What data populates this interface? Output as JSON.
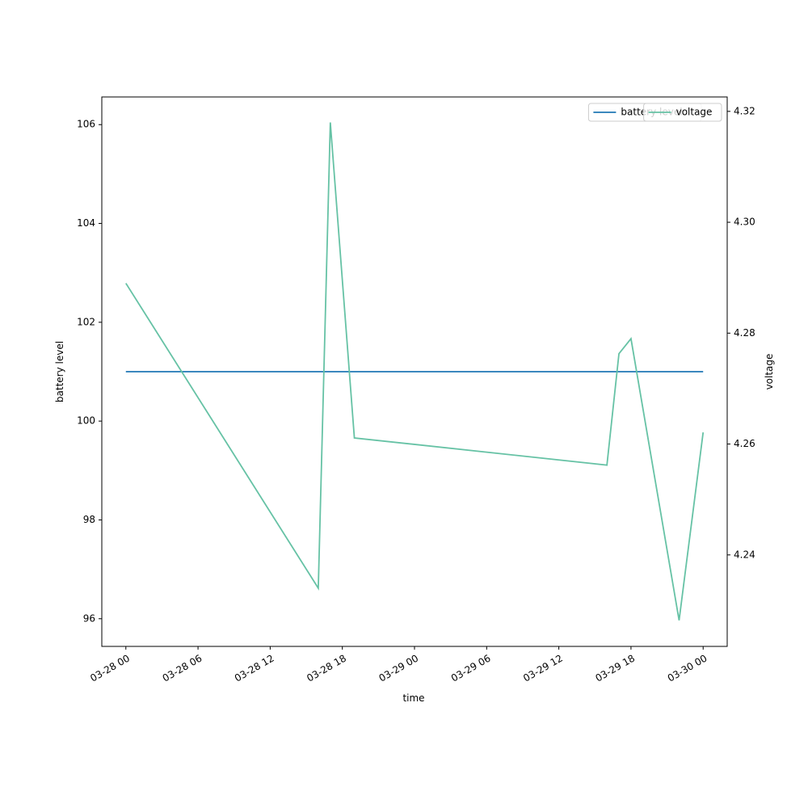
{
  "chart_data": {
    "type": "line",
    "x": [
      "03-28 00",
      "03-28 16",
      "03-28 17",
      "03-28 19",
      "03-29 16",
      "03-29 17",
      "03-29 18",
      "03-29 22",
      "03-30 00"
    ],
    "xlim": [
      "03-27 22",
      "03-30 02"
    ],
    "xticks": [
      "03-28 00",
      "03-28 06",
      "03-28 12",
      "03-28 18",
      "03-29 00",
      "03-29 06",
      "03-29 12",
      "03-29 18",
      "03-30 00"
    ],
    "xlabel": "time",
    "ylabel": "battery level",
    "y2label": "voltage",
    "ylim": [
      95.44,
      106.56
    ],
    "yticks": [
      96,
      98,
      100,
      102,
      104,
      106
    ],
    "y2lim": [
      4.2235,
      4.3226
    ],
    "y2ticks": [
      4.24,
      4.26,
      4.28,
      {
        "value": 4.3,
        "label": "4.30"
      },
      4.32
    ],
    "series": [
      {
        "name": "battery level",
        "color": "#1f77b4",
        "axis": "y",
        "values": [
          101,
          101,
          101,
          101,
          101,
          101,
          101,
          101,
          101
        ]
      },
      {
        "name": "voltage",
        "color": "#66c2a5",
        "axis": "y2",
        "values": [
          4.289,
          4.234,
          4.318,
          4.2611,
          4.2562,
          4.2763,
          4.279,
          4.2282,
          4.2621
        ]
      }
    ],
    "legend": "upper right"
  }
}
